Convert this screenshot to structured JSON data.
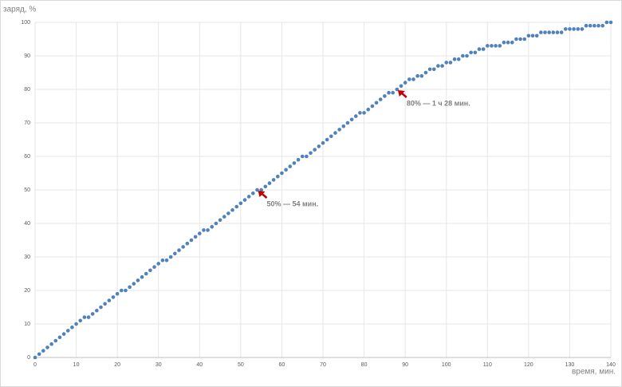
{
  "chart_data": {
    "type": "scatter",
    "y_label": "заряд, %",
    "x_label": "время, мин.",
    "x": [
      0,
      1,
      2,
      3,
      4,
      5,
      6,
      7,
      8,
      9,
      10,
      11,
      12,
      13,
      14,
      15,
      16,
      17,
      18,
      19,
      20,
      21,
      22,
      23,
      24,
      25,
      26,
      27,
      28,
      29,
      30,
      31,
      32,
      33,
      34,
      35,
      36,
      37,
      38,
      39,
      40,
      41,
      42,
      43,
      44,
      45,
      46,
      47,
      48,
      49,
      50,
      51,
      52,
      53,
      54,
      55,
      56,
      57,
      58,
      59,
      60,
      61,
      62,
      63,
      64,
      65,
      66,
      67,
      68,
      69,
      70,
      71,
      72,
      73,
      74,
      75,
      76,
      77,
      78,
      79,
      80,
      81,
      82,
      83,
      84,
      85,
      86,
      87,
      88,
      89,
      90,
      91,
      92,
      93,
      94,
      95,
      96,
      97,
      98,
      99,
      100,
      101,
      102,
      103,
      104,
      105,
      106,
      107,
      108,
      109,
      110,
      111,
      112,
      113,
      114,
      115,
      116,
      117,
      118,
      119,
      120,
      121,
      122,
      123,
      124,
      125,
      126,
      127,
      128,
      129,
      130,
      131,
      132,
      133,
      134,
      135,
      136,
      137,
      138,
      139,
      140
    ],
    "series": [
      {
        "name": "заряд",
        "color": "#4f81bd",
        "values": [
          0,
          1,
          2,
          3,
          4,
          5,
          6,
          7,
          8,
          9,
          10,
          11,
          12,
          12,
          13,
          14,
          15,
          16,
          17,
          18,
          19,
          20,
          20,
          21,
          22,
          23,
          24,
          25,
          26,
          27,
          28,
          29,
          29,
          30,
          31,
          32,
          33,
          34,
          35,
          36,
          37,
          38,
          38,
          39,
          40,
          41,
          42,
          43,
          44,
          45,
          46,
          47,
          48,
          49,
          50,
          50,
          51,
          52,
          53,
          54,
          55,
          56,
          57,
          58,
          59,
          60,
          60,
          61,
          62,
          63,
          64,
          65,
          66,
          67,
          68,
          69,
          70,
          71,
          72,
          73,
          73,
          74,
          75,
          76,
          77,
          78,
          79,
          79,
          80,
          81,
          82,
          83,
          83,
          84,
          84,
          85,
          86,
          86,
          87,
          87,
          88,
          88,
          89,
          89,
          90,
          90,
          91,
          91,
          92,
          92,
          93,
          93,
          93,
          93,
          94,
          94,
          94,
          95,
          95,
          95,
          96,
          96,
          96,
          97,
          97,
          97,
          97,
          97,
          97,
          98,
          98,
          98,
          98,
          98,
          99,
          99,
          99,
          99,
          99,
          100,
          100
        ]
      }
    ],
    "annotations": [
      {
        "text": "50% — 54 мин.",
        "x": 54,
        "y": 50
      },
      {
        "text": "80% — 1 ч 28 мин.",
        "x": 88,
        "y": 80
      }
    ],
    "xlim": [
      0,
      140
    ],
    "ylim": [
      0,
      100
    ],
    "xticks": [
      0,
      10,
      20,
      30,
      40,
      50,
      60,
      70,
      80,
      90,
      100,
      110,
      120,
      130,
      140
    ],
    "yticks": [
      0,
      10,
      20,
      30,
      40,
      50,
      60,
      70,
      80,
      90,
      100
    ],
    "grid": true
  }
}
